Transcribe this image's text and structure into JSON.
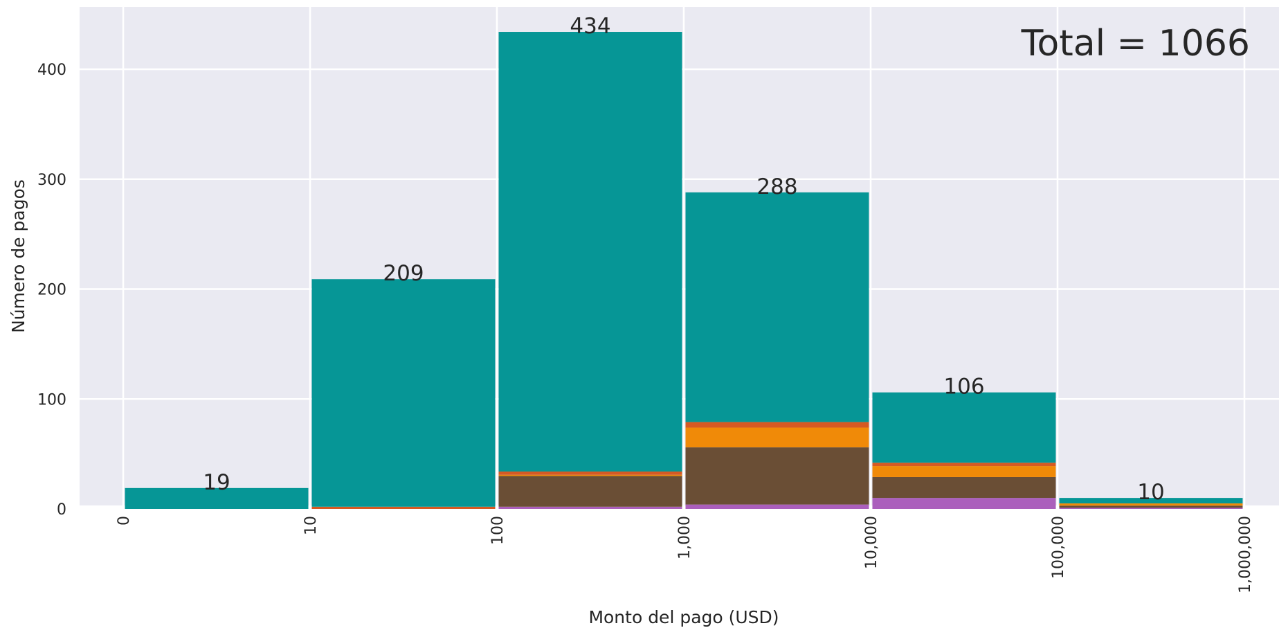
{
  "chart_data": {
    "type": "bar",
    "stacked": true,
    "title": "",
    "xlabel": "Monto del pago (USD)",
    "ylabel": "Número de pagos",
    "x_tick_labels": [
      "0",
      "10",
      "100",
      "1,000",
      "10,000",
      "100,000",
      "1,000,000"
    ],
    "categories": [
      "0–10",
      "10–100",
      "100–1,000",
      "1,000–10,000",
      "10,000–100,000",
      "100,000–1,000,000"
    ],
    "totals": [
      19,
      209,
      434,
      288,
      106,
      10
    ],
    "ylim": [
      0,
      445
    ],
    "y_ticks": [
      0,
      100,
      200,
      300,
      400
    ],
    "grid": true,
    "annotation": "Total = 1066",
    "series": [
      {
        "color": "#ab5fbc",
        "values": [
          0,
          0,
          2,
          4,
          10,
          1
        ]
      },
      {
        "color": "#6a4e35",
        "values": [
          0,
          0,
          28,
          52,
          19,
          2
        ]
      },
      {
        "color": "#f08a08",
        "values": [
          0,
          0,
          1,
          18,
          10,
          2
        ]
      },
      {
        "color": "#d65a23",
        "values": [
          0,
          2,
          3,
          5,
          3,
          0
        ]
      },
      {
        "color": "#069696",
        "values": [
          19,
          207,
          400,
          209,
          64,
          5
        ]
      }
    ],
    "background": "#eaeaf2"
  }
}
